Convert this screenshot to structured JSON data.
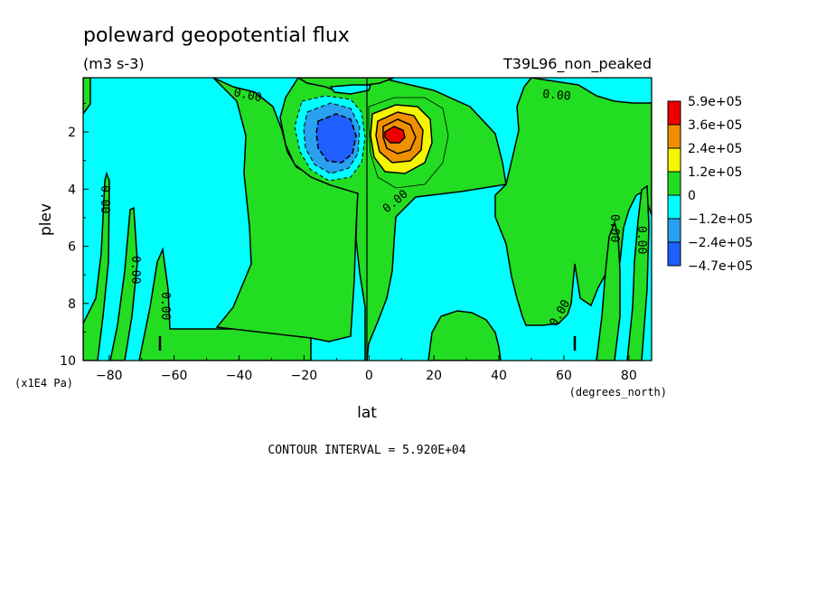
{
  "chart_data": {
    "type": "contour",
    "title": "poleward geopotential flux",
    "units": "(m3 s-3)",
    "run_label": "T39L96_non_peaked",
    "xlabel": "lat",
    "xunits": "(degrees_north)",
    "ylabel": "plev",
    "yunits": "(x1E4 Pa)",
    "xlim": [
      -88,
      87
    ],
    "ylim": [
      10,
      0.1
    ],
    "x_ticks": [
      -80,
      -60,
      -40,
      -20,
      0,
      20,
      40,
      60,
      80
    ],
    "x_tick_labels": [
      "−80",
      "−60",
      "−40",
      "−20",
      "0",
      "20",
      "40",
      "60",
      "80"
    ],
    "y_ticks": [
      2,
      4,
      6,
      8,
      10
    ],
    "y_tick_labels": [
      "2",
      "4",
      "6",
      "8",
      "10"
    ],
    "contour_interval_text": "CONTOUR INTERVAL = 5.920E+04",
    "contour_line_labels": [
      "0.00",
      "0.00",
      "0.00",
      "0.00",
      "0.00",
      "0.00",
      "0.00",
      "0.00",
      "0.00"
    ],
    "colorbar": {
      "labels": [
        "5.9e+05",
        "3.6e+05",
        "2.4e+05",
        "1.2e+05",
        "0",
        "−1.2e+05",
        "−2.4e+05",
        "−4.7e+05"
      ],
      "colors": [
        "#ee0000",
        "#f09000",
        "#f5f500",
        "#22dd22",
        "#00ffff",
        "#2aa0f0",
        "#1f5fff"
      ]
    },
    "extrema": [
      {
        "name": "min",
        "lat": -10,
        "plev": 2.3,
        "value": -470000
      },
      {
        "name": "max",
        "lat": 8,
        "plev": 2.1,
        "value": 590000
      }
    ]
  },
  "colors": {
    "positive_fill": "#22dd22",
    "negative_fill": "#00ffff",
    "contour_line": "#000000"
  }
}
